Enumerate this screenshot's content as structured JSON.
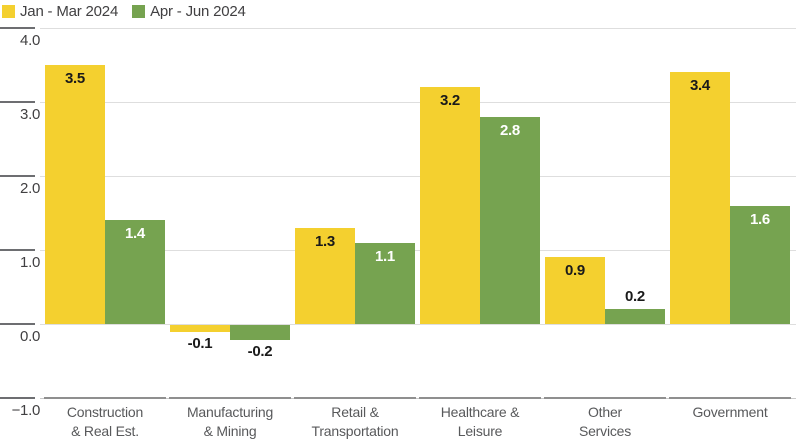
{
  "chart_data": {
    "type": "bar",
    "title": "",
    "xlabel": "",
    "ylabel": "",
    "grid": true,
    "legend_position": "top-left",
    "ylim": [
      -1.0,
      4.0
    ],
    "y_ticks": [
      4.0,
      3.0,
      2.0,
      1.0,
      0.0,
      -1.0
    ],
    "y_tick_labels": [
      "4.0",
      "3.0",
      "2.0",
      "1.0",
      "0.0",
      "−1.0"
    ],
    "categories": [
      "Construction & Real Est.",
      "Manufacturing & Mining",
      "Retail & Transportation",
      "Healthcare & Leisure",
      "Other Services",
      "Government"
    ],
    "category_lines": [
      [
        "Construction",
        "& Real Est."
      ],
      [
        "Manufacturing",
        "& Mining"
      ],
      [
        "Retail &",
        "Transportation"
      ],
      [
        "Healthcare &",
        "Leisure"
      ],
      [
        "Other",
        "Services"
      ],
      [
        "Government"
      ]
    ],
    "series": [
      {
        "name": "Jan - Mar 2024",
        "color": "#F4D02F",
        "label_color": "#1a1a1a",
        "values": [
          3.5,
          -0.1,
          1.3,
          3.2,
          0.9,
          3.4
        ],
        "labels": [
          "3.5",
          "-0.1",
          "1.3",
          "3.2",
          "0.9",
          "3.4"
        ]
      },
      {
        "name": "Apr - Jun 2024",
        "color": "#76A350",
        "label_color": "#ffffff",
        "values": [
          1.4,
          -0.2,
          1.1,
          2.8,
          0.2,
          1.6
        ],
        "labels": [
          "1.4",
          "-0.2",
          "1.1",
          "2.8",
          "0.2",
          "1.6"
        ]
      }
    ],
    "outside_label_color": "#1a1a1a"
  }
}
